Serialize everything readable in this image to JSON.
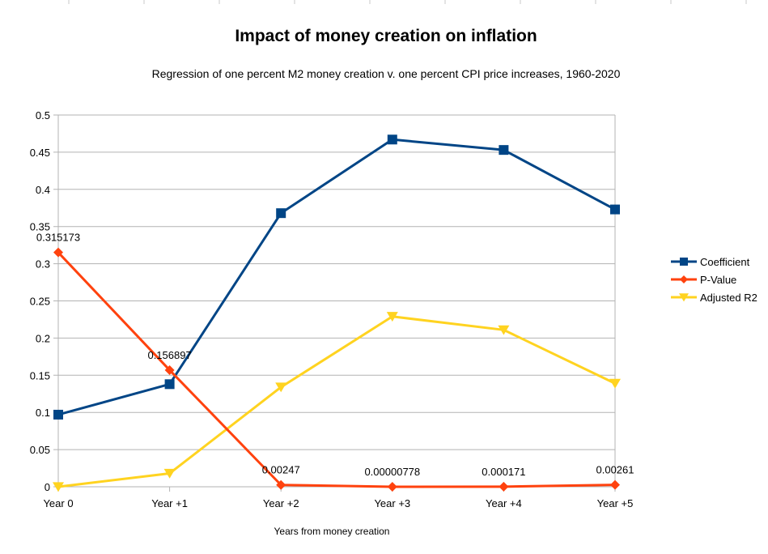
{
  "chart_data": {
    "type": "line",
    "title": "Impact of money creation on inflation",
    "subtitle": "Regression of one percent M2 money creation v. one percent CPI price increases, 1960-2020",
    "xlabel": "Years from money creation",
    "ylabel": "",
    "categories": [
      "Year 0",
      "Year +1",
      "Year +2",
      "Year +3",
      "Year +4",
      "Year +5"
    ],
    "ylim": [
      0,
      0.5
    ],
    "yticks": [
      0,
      0.05,
      0.1,
      0.15,
      0.2,
      0.25,
      0.3,
      0.35,
      0.4,
      0.45,
      0.5
    ],
    "ytick_labels": [
      "0",
      "0.05",
      "0.1",
      "0.15",
      "0.2",
      "0.25",
      "0.3",
      "0.35",
      "0.4",
      "0.45",
      "0.5"
    ],
    "grid": true,
    "legend_position": "right",
    "series": [
      {
        "name": "Coefficient",
        "color": "#004586",
        "marker": "square",
        "values": [
          0.097,
          0.138,
          0.368,
          0.467,
          0.453,
          0.373
        ],
        "data_labels": null
      },
      {
        "name": "P-Value",
        "color": "#ff420e",
        "marker": "diamond",
        "values": [
          0.315173,
          0.156897,
          0.00247,
          7.78e-06,
          0.000171,
          0.00261
        ],
        "data_labels": [
          "0.315173",
          "0.156897",
          "0.00247",
          "0.00000778",
          "0.000171",
          "0.00261"
        ]
      },
      {
        "name": "Adjusted R2",
        "color": "#ffd320",
        "marker": "triangle-down",
        "values": [
          0.0,
          0.018,
          0.134,
          0.229,
          0.211,
          0.139
        ],
        "data_labels": null
      }
    ]
  }
}
